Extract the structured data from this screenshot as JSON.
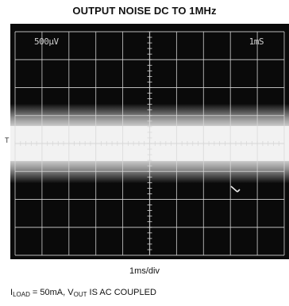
{
  "chart_data": {
    "type": "oscilloscope",
    "title": "OUTPUT NOISE DC TO 1MHz",
    "scale_label": "500µV",
    "time_label": "1mS",
    "xlabel": "1ms/div",
    "y_tick": "T",
    "note": {
      "i_prefix": "I",
      "i_sub": "LOAD",
      "middle": " = 50mA, V",
      "v_sub": "OUT",
      "suffix": " IS AC COUPLED"
    },
    "divisions": {
      "x": 10,
      "y": 8
    },
    "trace": {
      "center_div": 4.0,
      "band_height_div": 1.9
    },
    "colors": {
      "screen": "#0a0a0a",
      "grid": "#d8d8d8",
      "trace": "#f2f2f2"
    }
  }
}
